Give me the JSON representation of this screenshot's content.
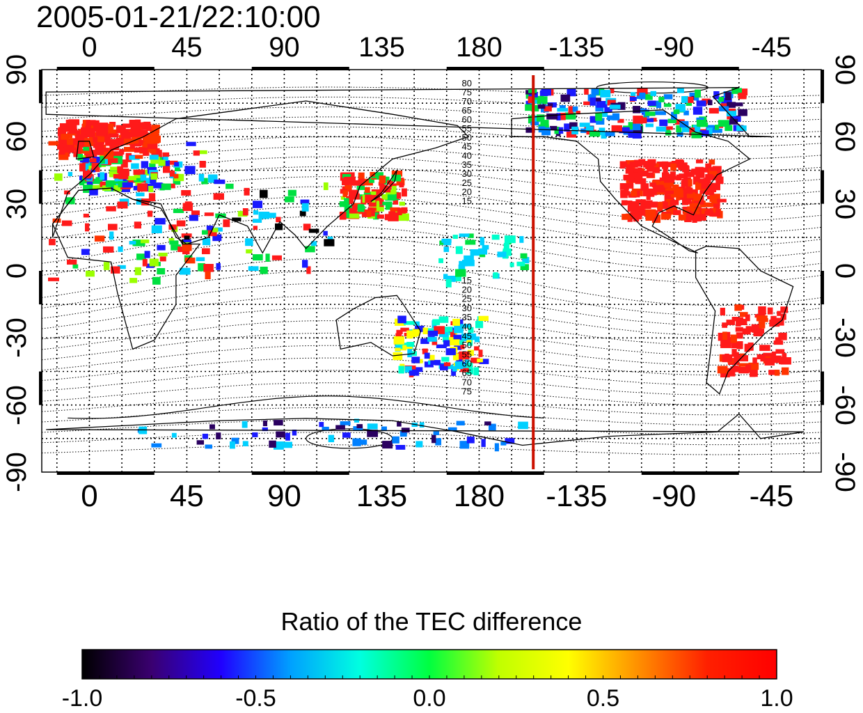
{
  "title": "2005-01-21/22:10:00",
  "lon_ticks": [
    "0",
    "45",
    "90",
    "135",
    "180",
    "-135",
    "-90",
    "-45"
  ],
  "lat_ticks": [
    "90",
    "60",
    "30",
    "0",
    "-30",
    "-60",
    "-90"
  ],
  "contour_labels_north": [
    "80",
    "75",
    "70",
    "65",
    "60",
    "55",
    "50",
    "45",
    "40",
    "35",
    "30",
    "25",
    "20",
    "15"
  ],
  "contour_labels_south": [
    "15",
    "20",
    "25",
    "30",
    "35",
    "40",
    "45",
    "50",
    "55",
    "60",
    "65",
    "70",
    "75"
  ],
  "colorbar": {
    "title": "Ratio of the TEC difference",
    "ticks": [
      "-1.0",
      "-0.5",
      "0.0",
      "0.5",
      "1.0"
    ],
    "colors": [
      "#000000",
      "#3a0070",
      "#2000ff",
      "#00a0ff",
      "#00ffe0",
      "#00ff40",
      "#c0ff00",
      "#ffff00",
      "#ff9000",
      "#ff2000",
      "#ff0000"
    ]
  },
  "meridian_marker": {
    "longitude": -155,
    "color": "#cc1100"
  },
  "data_regions": [
    {
      "name": "europe",
      "color": "#ff1a1a"
    },
    {
      "name": "north-america",
      "color": "#ff1a1a"
    },
    {
      "name": "east-asia",
      "color": "#ff1a1a"
    },
    {
      "name": "south-america",
      "color": "#ff1a1a"
    },
    {
      "name": "alaska-canada",
      "color": "#1a4dff"
    },
    {
      "name": "australia-new-zealand",
      "color": "#33ccff"
    },
    {
      "name": "antarctica-coast",
      "color": "#1a4dff"
    }
  ]
}
